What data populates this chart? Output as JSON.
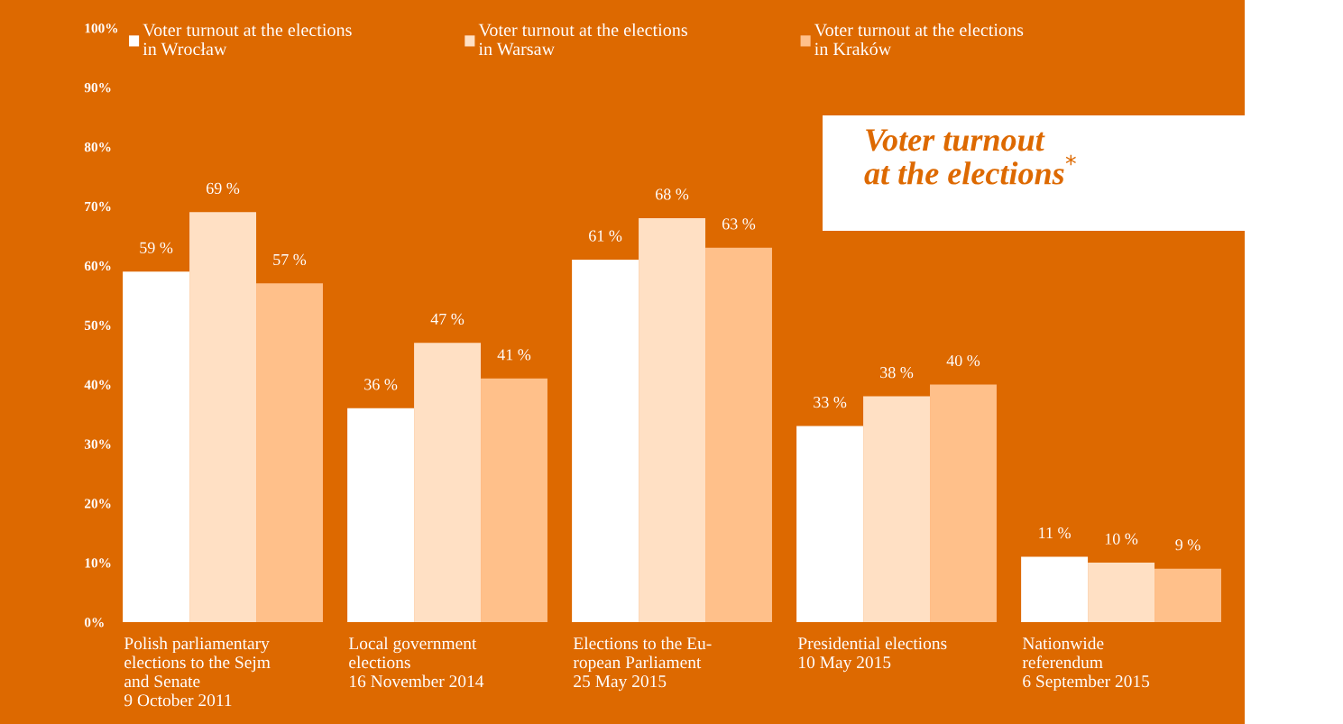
{
  "chart_data": {
    "type": "bar",
    "title": "Voter turnout\nat the elections$^{*}$",
    "categories": [
      "Polish parliamentary\nelections to the Sejm\nand Senate\n9 October 2011",
      "Local government\nelections\n16 November 2014",
      "Elections to the Eu-\nropean Parliament\n25 May 2015",
      "Presidential elections\n10 May 2015",
      "Nationwide\nreferendum\n6 September 2015"
    ],
    "series": [
      {
        "name": "Voter turnout at the elections\nin Wrocław",
        "color": "#ffffff",
        "values": [
          59,
          36,
          61,
          33,
          11
        ],
        "value_labels": [
          "59 %",
          "36 %",
          "61 %",
          "33 %",
          "11 %"
        ]
      },
      {
        "name": "Voter turnout at the elections\nin Warsaw",
        "color": "#ffe0c4",
        "values": [
          69,
          47,
          68,
          38,
          10
        ],
        "value_labels": [
          "69 %",
          "47 %",
          "68 %",
          "38 %",
          "10 %"
        ]
      },
      {
        "name": "Voter turnout at the elections\nin Kraków",
        "color": "#ffc08a",
        "values": [
          57,
          41,
          63,
          40,
          9
        ],
        "value_labels": [
          "57 %",
          "41 %",
          "63 %",
          "40 %",
          "9 %"
        ]
      }
    ],
    "ylim": [
      0,
      100
    ],
    "yticks": [
      {
        "value": 0,
        "label": "0%"
      },
      {
        "value": 10,
        "label": "10%"
      },
      {
        "value": 20,
        "label": "20%"
      },
      {
        "value": 30,
        "label": "30%"
      },
      {
        "value": 40,
        "label": "40%"
      },
      {
        "value": 50,
        "label": "50%"
      },
      {
        "value": 60,
        "label": "60%"
      },
      {
        "value": 70,
        "label": "70%"
      },
      {
        "value": 80,
        "label": "80%"
      },
      {
        "value": 90,
        "label": "90%"
      },
      {
        "value": 100,
        "label": "100%"
      }
    ],
    "grid": false,
    "legend": "top"
  }
}
